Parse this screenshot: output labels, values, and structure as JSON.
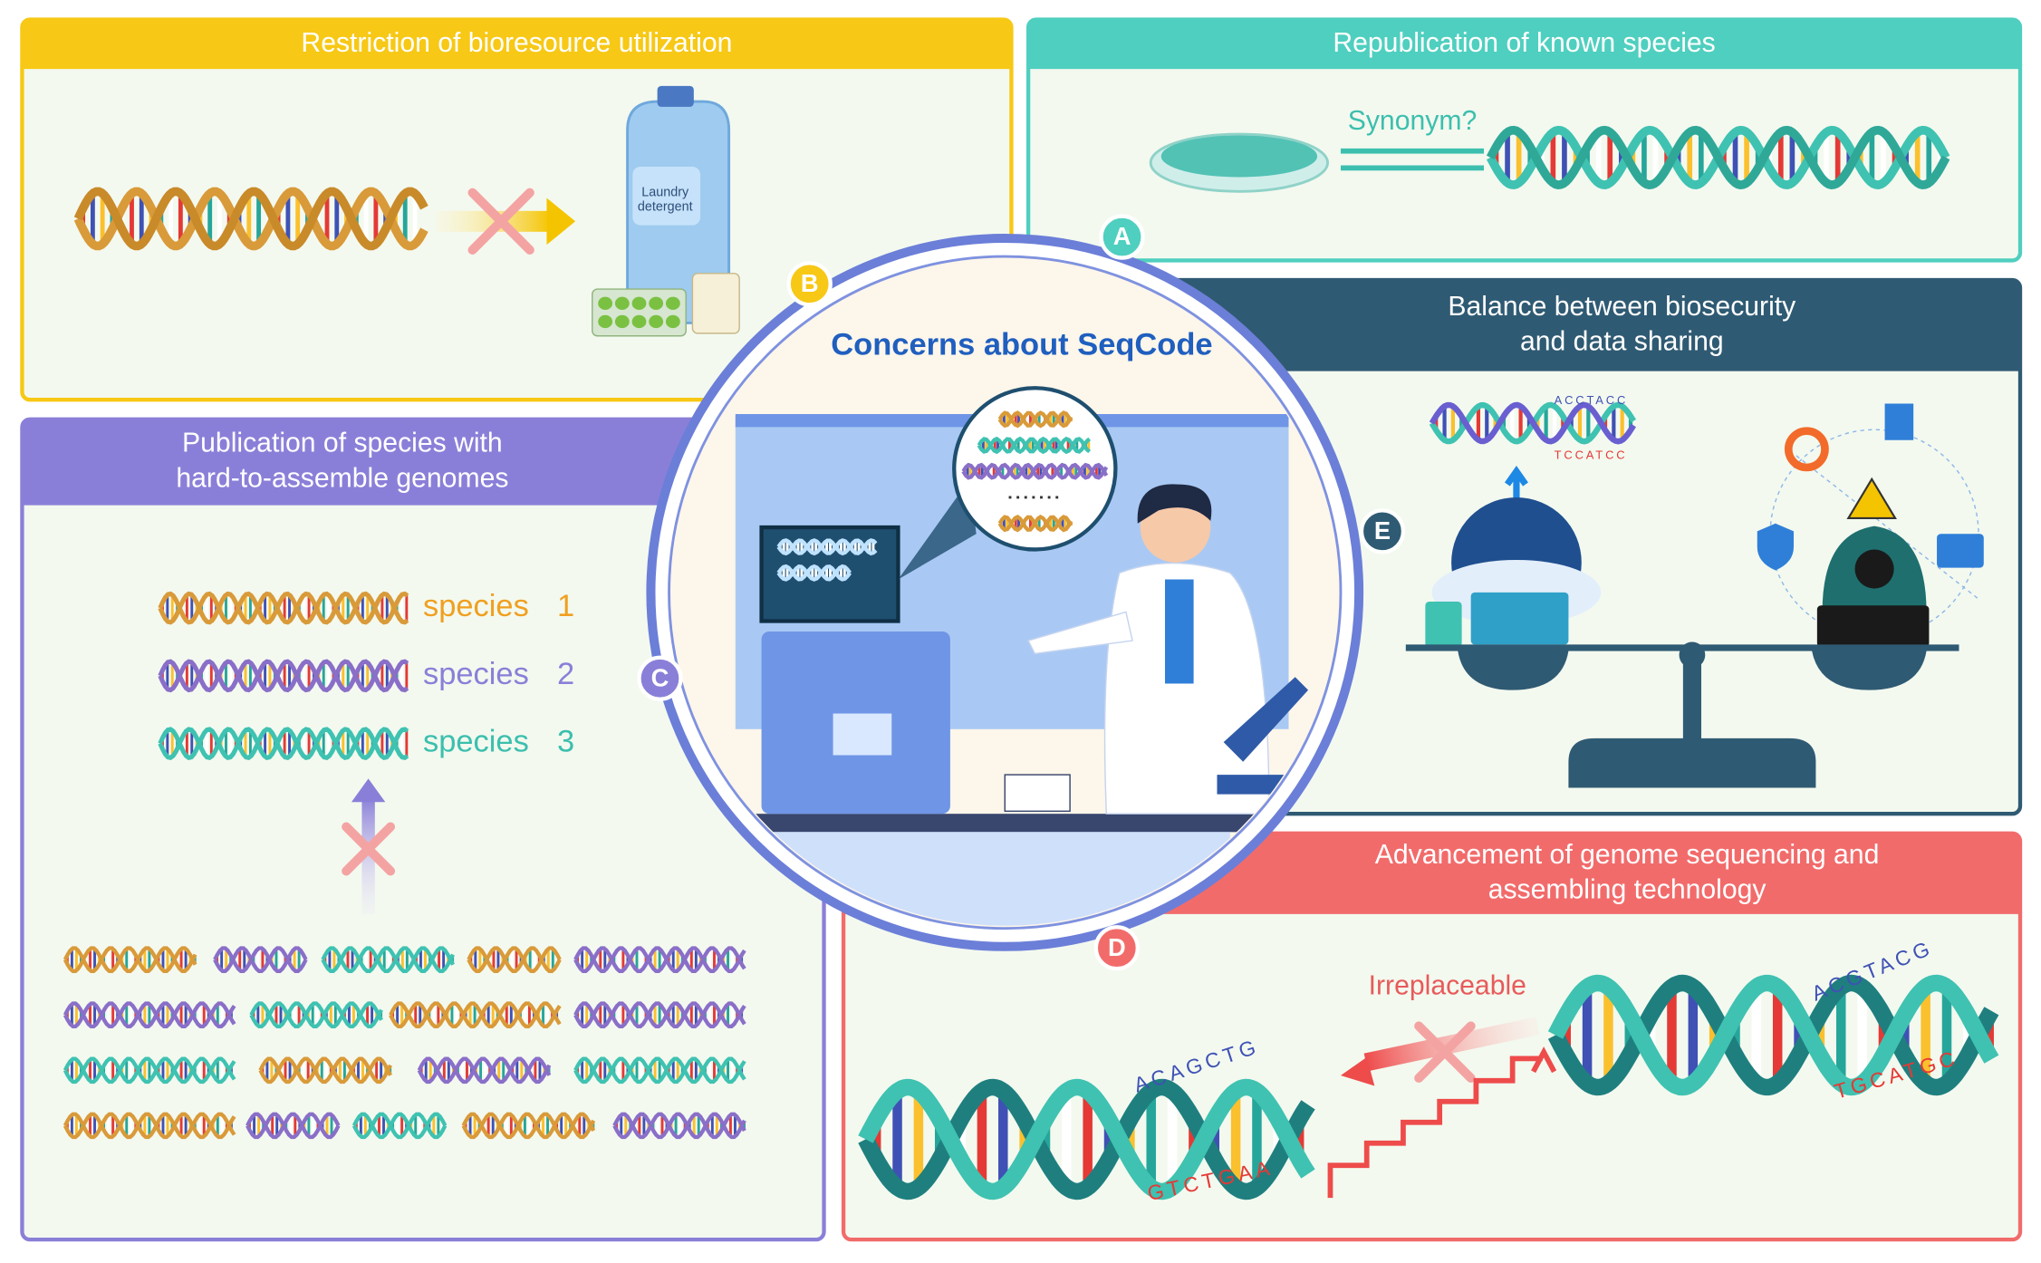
{
  "center": {
    "title": "Concerns about SeqCode"
  },
  "panels": {
    "A": {
      "letter": "A",
      "title": [
        "Republication of known species"
      ],
      "annotation": "Synonym?"
    },
    "B": {
      "letter": "B",
      "title": [
        "Restriction of bioresource utilization"
      ],
      "product_label": [
        "Laundry",
        "detergent"
      ]
    },
    "C": {
      "letter": "C",
      "title": [
        "Publication of species with",
        "hard-to-assemble genomes"
      ],
      "species": [
        {
          "name": "species",
          "number": "1"
        },
        {
          "name": "species",
          "number": "2"
        },
        {
          "name": "species",
          "number": "3"
        }
      ]
    },
    "D": {
      "letter": "D",
      "title": [
        "Advancement of genome sequencing and",
        "assembling technology"
      ],
      "annotation": "Irreplaceable",
      "sequences": [
        "ACAGCTG",
        "GTCTGAA",
        "ACGTACG",
        "TGCATGC"
      ]
    },
    "E": {
      "letter": "E",
      "title": [
        "Balance between biosecurity",
        "and data sharing"
      ],
      "sequences": [
        "ACCTACC",
        "TCCATCC"
      ]
    }
  }
}
